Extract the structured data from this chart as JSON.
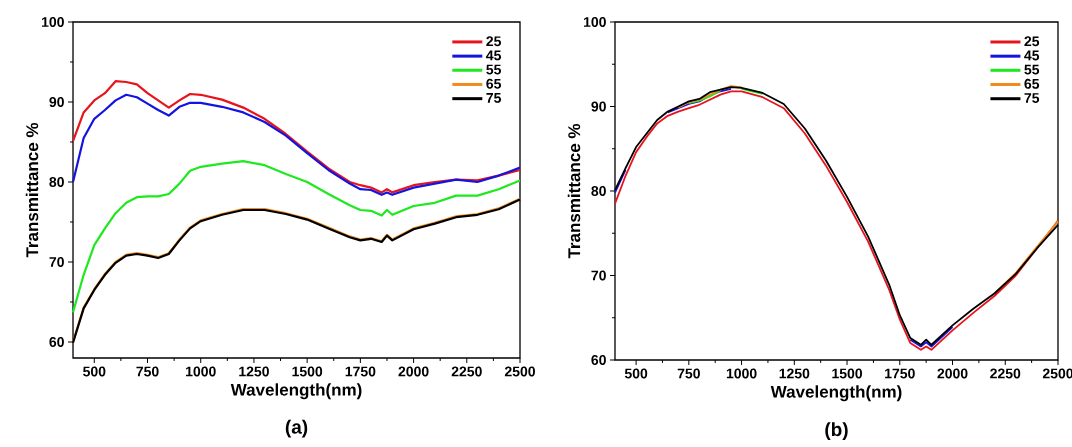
{
  "chart_data": [
    {
      "type": "line",
      "xlabel": "Wavelength(nm)",
      "ylabel": "Transmittance %",
      "annotations": [
        "(a)"
      ],
      "legend": "top right",
      "grid": false,
      "xlim": [
        400,
        2500
      ],
      "ylim": [
        58,
        100
      ],
      "xticks": [
        500,
        750,
        1000,
        1250,
        1500,
        1750,
        2000,
        2250,
        2500
      ],
      "yticks": [
        60,
        70,
        80,
        90,
        100
      ],
      "x": [
        400,
        450,
        500,
        550,
        600,
        650,
        700,
        750,
        800,
        850,
        900,
        950,
        1000,
        1100,
        1200,
        1300,
        1400,
        1500,
        1600,
        1700,
        1750,
        1800,
        1850,
        1875,
        1900,
        2000,
        2100,
        2200,
        2300,
        2400,
        2500
      ],
      "series": [
        {
          "name": "25",
          "color": "#e8141c",
          "values": [
            85.1,
            88.7,
            90.2,
            91.1,
            92.6,
            92.5,
            92.2,
            91.1,
            90.2,
            89.3,
            90.2,
            91.0,
            90.9,
            90.3,
            89.3,
            87.9,
            86.0,
            83.8,
            81.7,
            80.0,
            79.6,
            79.3,
            78.7,
            79.1,
            78.7,
            79.6,
            80.0,
            80.3,
            80.2,
            80.8,
            81.5
          ]
        },
        {
          "name": "45",
          "color": "#1414e0",
          "values": [
            80.0,
            85.5,
            87.9,
            89.0,
            90.2,
            90.9,
            90.6,
            89.8,
            89.0,
            88.3,
            89.4,
            89.9,
            89.9,
            89.4,
            88.7,
            87.5,
            85.8,
            83.6,
            81.5,
            79.8,
            79.1,
            79.0,
            78.4,
            78.7,
            78.4,
            79.3,
            79.8,
            80.3,
            80.0,
            80.8,
            81.8
          ]
        },
        {
          "name": "55",
          "color": "#1ee81e",
          "values": [
            63.7,
            68.4,
            72.1,
            74.2,
            76.1,
            77.4,
            78.1,
            78.2,
            78.2,
            78.5,
            79.8,
            81.4,
            81.9,
            82.3,
            82.6,
            82.1,
            81.0,
            80.0,
            78.5,
            77.1,
            76.5,
            76.4,
            75.8,
            76.5,
            75.9,
            77.0,
            77.4,
            78.3,
            78.3,
            79.1,
            80.2
          ]
        },
        {
          "name": "65",
          "color": "#f08c1e",
          "values": [
            60.0,
            64.3,
            66.6,
            68.5,
            70.0,
            70.9,
            71.1,
            70.9,
            70.6,
            71.1,
            72.8,
            74.3,
            75.2,
            76.0,
            76.6,
            76.6,
            76.1,
            75.4,
            74.3,
            73.2,
            72.8,
            73.0,
            72.6,
            73.4,
            72.8,
            74.2,
            74.9,
            75.7,
            76.0,
            76.7,
            77.9
          ]
        },
        {
          "name": "75",
          "color": "#000000",
          "values": [
            59.9,
            64.2,
            66.5,
            68.4,
            69.9,
            70.8,
            71.0,
            70.8,
            70.5,
            71.0,
            72.7,
            74.2,
            75.1,
            75.9,
            76.5,
            76.5,
            76.0,
            75.3,
            74.2,
            73.1,
            72.7,
            72.9,
            72.5,
            73.3,
            72.7,
            74.1,
            74.8,
            75.6,
            75.9,
            76.6,
            77.8
          ]
        }
      ]
    },
    {
      "type": "line",
      "xlabel": "Wavelength(nm)",
      "ylabel": "Transmittance %",
      "annotations": [
        "(b)"
      ],
      "legend": "top right",
      "grid": false,
      "xlim": [
        400,
        2500
      ],
      "ylim": [
        60,
        100
      ],
      "xticks": [
        500,
        750,
        1000,
        1250,
        1500,
        1750,
        2000,
        2250,
        2500
      ],
      "yticks": [
        60,
        70,
        80,
        90,
        100
      ],
      "x": [
        400,
        450,
        500,
        550,
        600,
        650,
        700,
        750,
        800,
        850,
        900,
        950,
        1000,
        1100,
        1200,
        1300,
        1400,
        1500,
        1600,
        1700,
        1750,
        1800,
        1850,
        1875,
        1900,
        2000,
        2100,
        2200,
        2300,
        2400,
        2500
      ],
      "series": [
        {
          "name": "25",
          "color": "#e8141c",
          "values": [
            78.5,
            81.8,
            84.6,
            86.4,
            88.0,
            88.9,
            89.4,
            89.8,
            90.2,
            90.8,
            91.4,
            91.8,
            91.8,
            91.1,
            89.8,
            86.8,
            83.0,
            78.7,
            74.0,
            68.3,
            64.8,
            62.0,
            61.2,
            61.6,
            61.2,
            63.5,
            65.6,
            67.6,
            70.0,
            73.2,
            76.5
          ]
        },
        {
          "name": "45",
          "color": "#1414e0",
          "values": [
            79.8,
            82.5,
            null,
            null,
            null,
            89.3,
            89.8,
            90.3,
            90.6,
            91.3,
            91.8,
            92.1,
            null,
            null,
            null,
            null,
            null,
            null,
            null,
            null,
            null,
            62.4,
            61.6,
            62.1,
            61.6,
            63.9,
            null,
            null,
            null,
            null,
            null
          ]
        },
        {
          "name": "55",
          "color": "#1ee81e",
          "values": [
            null,
            null,
            null,
            null,
            null,
            null,
            null,
            90.4,
            90.7,
            91.2,
            91.9,
            null,
            92.1,
            91.5,
            null,
            null,
            null,
            null,
            null,
            null,
            null,
            null,
            null,
            null,
            null,
            null,
            null,
            null,
            null,
            null,
            null
          ]
        },
        {
          "name": "65",
          "color": "#f08c1e",
          "values": [
            null,
            null,
            null,
            null,
            null,
            null,
            89.9,
            90.5,
            90.8,
            91.4,
            92.0,
            92.4,
            92.3,
            null,
            null,
            null,
            null,
            null,
            null,
            null,
            null,
            null,
            null,
            null,
            null,
            null,
            null,
            67.9,
            70.3,
            73.4,
            76.4
          ]
        },
        {
          "name": "75",
          "color": "#000000",
          "values": [
            80.1,
            82.7,
            85.2,
            86.8,
            88.4,
            89.4,
            90.0,
            90.6,
            90.9,
            91.7,
            92.0,
            92.3,
            92.2,
            91.6,
            90.3,
            87.4,
            83.6,
            79.3,
            74.6,
            68.9,
            65.3,
            62.6,
            61.8,
            62.4,
            61.8,
            64.1,
            66.1,
            67.9,
            70.2,
            73.2,
            76.0
          ]
        }
      ]
    }
  ]
}
